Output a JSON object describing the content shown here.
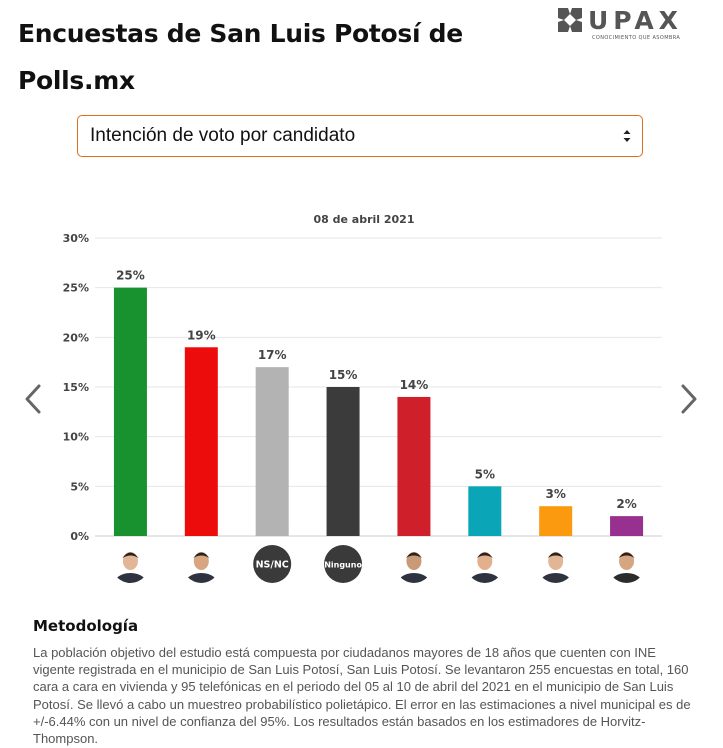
{
  "page": {
    "title": "Encuestas de San Luis Potosí de Polls.mx"
  },
  "logo": {
    "name": "UPAX",
    "tagline": "CONOCIMIENTO QUE ASOMBRA"
  },
  "selector": {
    "selected": "Intención de voto por candidato"
  },
  "carousel": {
    "prev_icon": "chevron-left-icon",
    "next_icon": "chevron-right-icon"
  },
  "chart_data": {
    "type": "bar",
    "title": "08 de abril 2021",
    "xlabel": "",
    "ylabel": "",
    "ylim": [
      0,
      30
    ],
    "yticks": [
      0,
      5,
      10,
      15,
      20,
      25,
      30
    ],
    "ytick_labels": [
      "0%",
      "5%",
      "10%",
      "15%",
      "20%",
      "25%",
      "30%"
    ],
    "grid": true,
    "categories": [
      "",
      "",
      "NS/NC",
      "Ninguno",
      "",
      "",
      "",
      ""
    ],
    "values": [
      25,
      19,
      17,
      15,
      14,
      5,
      3,
      2
    ],
    "value_labels": [
      "25%",
      "19%",
      "17%",
      "15%",
      "14%",
      "5%",
      "3%",
      "2%"
    ],
    "colors": [
      "#17922f",
      "#ed0c0c",
      "#b3b3b3",
      "#3b3b3b",
      "#cf1f2a",
      "#0aa6b8",
      "#fb9a0e",
      "#97308f"
    ]
  },
  "methodology": {
    "heading": "Metodología",
    "text": "La población objetivo del estudio está compuesta por ciudadanos mayores de 18 años que cuenten con INE vigente registrada en el municipio de San Luis Potosí, San Luis Potosí. Se levantaron 255 encuestas en total, 160 cara a cara en vivienda y 95 telefónicas en el periodo del 05 al 10 de abril del 2021 en el municipio de San Luis Potosí. Se llevó a cabo un muestreo probabilístico polietápico. El error en las estimaciones a nivel municipal es de +/-6.44% con un nivel de confianza del 95%. Los resultados están basados en los estimadores de Horvitz-Thompson."
  }
}
